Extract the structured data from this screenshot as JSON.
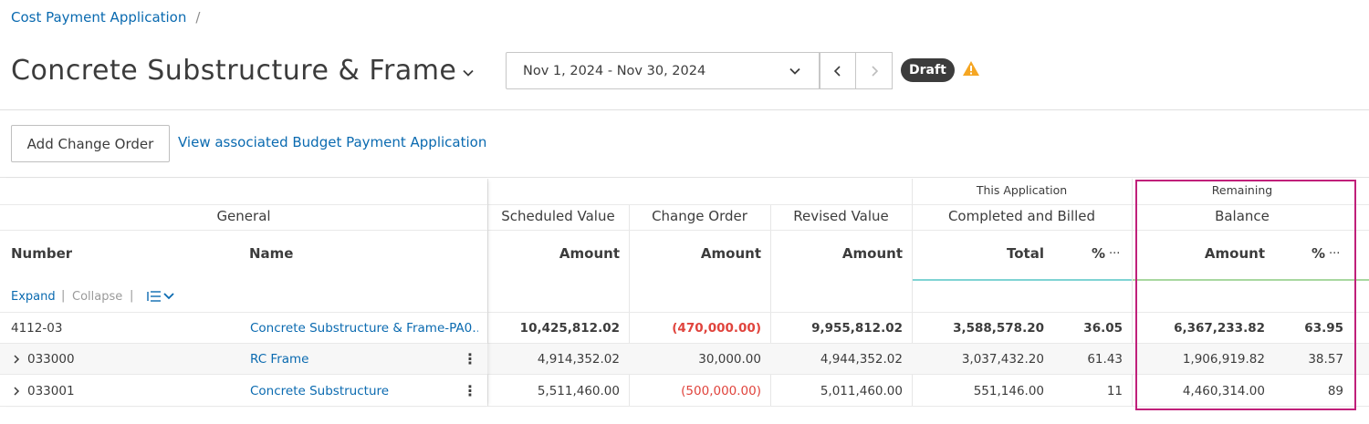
{
  "breadcrumb": {
    "parent": "Cost Payment Application",
    "separator": "/"
  },
  "header": {
    "title": "Concrete Substructure & Frame",
    "date_range": "Nov 1, 2024 - Nov 30, 2024",
    "status": "Draft"
  },
  "actions": {
    "add_change_order": "Add Change Order",
    "view_budget_link": "View associated Budget Payment Application"
  },
  "table": {
    "groups": {
      "general": "General",
      "scheduled_value": "Scheduled Value",
      "change_order": "Change Order",
      "revised_value": "Revised Value",
      "this_application": "This Application",
      "completed_billed": "Completed and Billed",
      "remaining": "Remaining",
      "balance": "Balance"
    },
    "columns": {
      "number": "Number",
      "name": "Name",
      "sv_amount": "Amount",
      "co_amount": "Amount",
      "rv_amount": "Amount",
      "cb_total": "Total",
      "cb_pct": "%",
      "bal_amount": "Amount",
      "bal_pct": "%",
      "more": "···"
    },
    "toolbar": {
      "expand": "Expand",
      "collapse": "Collapse",
      "divider": "|"
    },
    "rows": [
      {
        "number": "4112-03",
        "name": "Concrete Substructure & Frame-PA0…",
        "scheduled": "10,425,812.02",
        "change": "(470,000.00)",
        "revised": "9,955,812.02",
        "completed": "3,588,578.20",
        "completed_pct": "36.05",
        "balance": "6,367,233.82",
        "balance_pct": "63.95"
      },
      {
        "number": "033000",
        "name": "RC Frame",
        "scheduled": "4,914,352.02",
        "change": "30,000.00",
        "revised": "4,944,352.02",
        "completed": "3,037,432.20",
        "completed_pct": "61.43",
        "balance": "1,906,919.82",
        "balance_pct": "38.57"
      },
      {
        "number": "033001",
        "name": "Concrete Substructure",
        "scheduled": "5,511,460.00",
        "change": "(500,000.00)",
        "revised": "5,011,460.00",
        "completed": "551,146.00",
        "completed_pct": "11",
        "balance": "4,460,314.00",
        "balance_pct": "89"
      }
    ]
  },
  "colors": {
    "link": "#0a6ab0",
    "negative": "#e0443d",
    "warning": "#f5a623",
    "highlight": "#c0207a",
    "accent_teal": "#7fd3d3",
    "accent_green": "#a8d8a0"
  }
}
